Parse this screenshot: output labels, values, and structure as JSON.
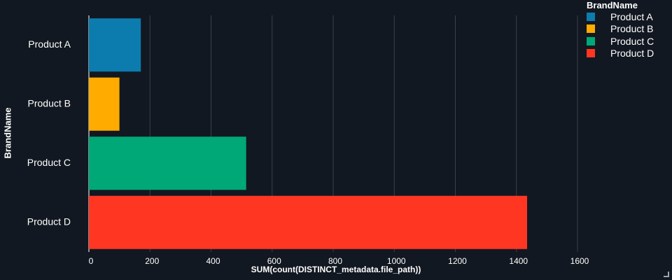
{
  "chart_data": {
    "type": "bar",
    "orientation": "horizontal",
    "categories": [
      "Product A",
      "Product B",
      "Product C",
      "Product D"
    ],
    "values": [
      170,
      100,
      515,
      1435
    ],
    "colors": [
      "#0c7caf",
      "#ffab00",
      "#00a877",
      "#ff3622"
    ],
    "title": "",
    "xlabel": "SUM(count(DISTINCT_metadata.file_path))",
    "ylabel": "BrandName",
    "xlim": [
      0,
      1600
    ],
    "xticks": [
      0,
      200,
      400,
      600,
      800,
      1000,
      1200,
      1400,
      1600
    ],
    "grid": "vertical",
    "legend": {
      "title": "BrandName",
      "placement": "top-right",
      "entries": [
        "Product A",
        "Product B",
        "Product C",
        "Product D"
      ]
    }
  }
}
